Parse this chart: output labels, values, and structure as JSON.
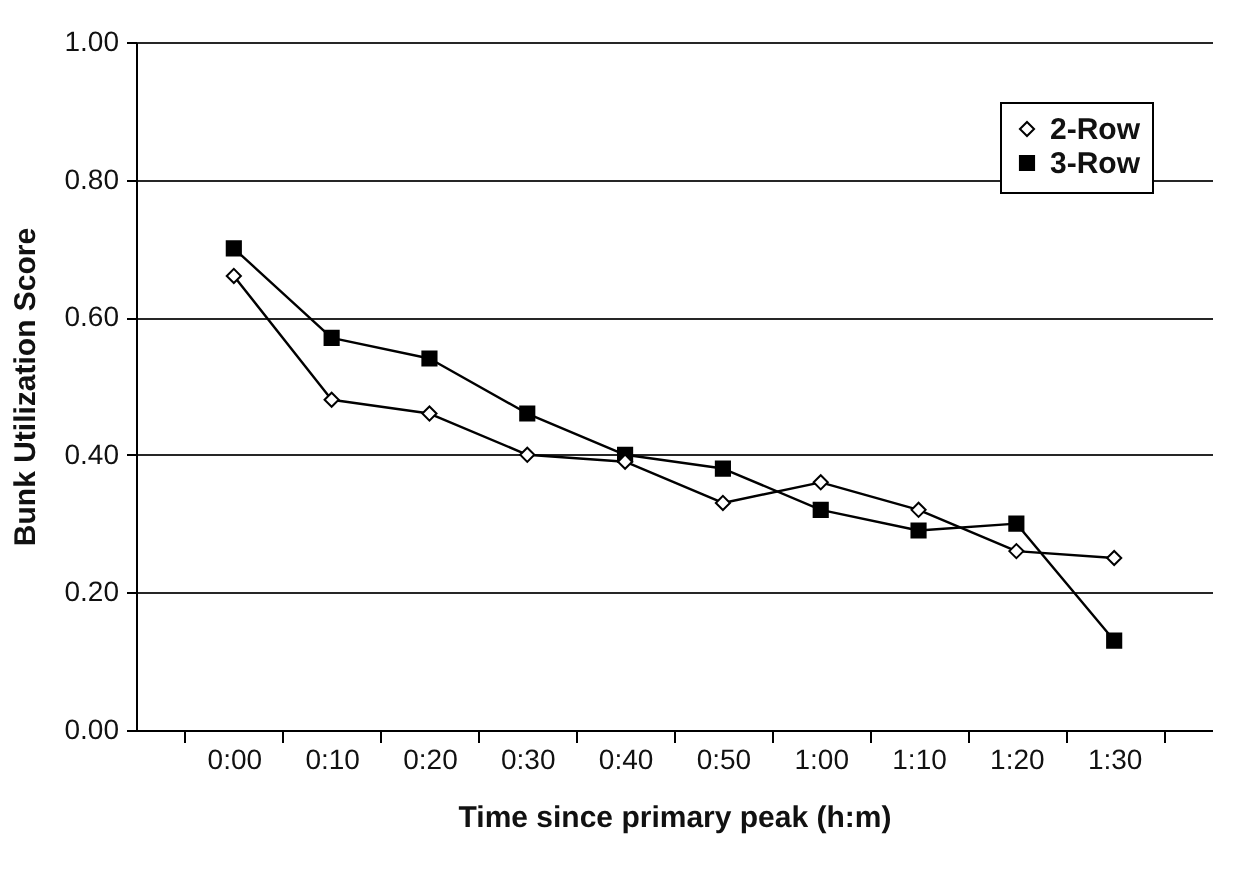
{
  "chart_data": {
    "type": "line",
    "xlabel": "Time since primary peak (h:m)",
    "ylabel": "Bunk Utilization Score",
    "categories": [
      "0:00",
      "0:10",
      "0:20",
      "0:30",
      "0:40",
      "0:50",
      "1:00",
      "1:10",
      "1:20",
      "1:30"
    ],
    "series": [
      {
        "name": "2-Row",
        "color": "#000000",
        "marker": "diamond",
        "values": [
          0.66,
          0.48,
          0.46,
          0.4,
          0.39,
          0.33,
          0.36,
          0.32,
          0.26,
          0.25
        ]
      },
      {
        "name": "3-Row",
        "color": "#000000",
        "marker": "square",
        "values": [
          0.7,
          0.57,
          0.54,
          0.46,
          0.4,
          0.38,
          0.32,
          0.29,
          0.3,
          0.13
        ]
      }
    ],
    "ylim": [
      0,
      1
    ],
    "yticks": [
      {
        "value": 0,
        "label": "0.00"
      },
      {
        "value": 0.2,
        "label": "0.20"
      },
      {
        "value": 0.4,
        "label": "0.40"
      },
      {
        "value": 0.6,
        "label": "0.60"
      },
      {
        "value": 0.8,
        "label": "0.80"
      },
      {
        "value": 1,
        "label": "1.00"
      }
    ],
    "grid": "y",
    "legend": "top right",
    "line_style": "solid"
  }
}
